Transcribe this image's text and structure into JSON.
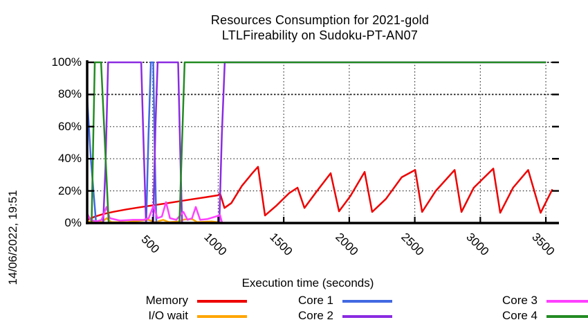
{
  "title": {
    "line1": "Resources Consumption for 2021-gold",
    "line2": "LTLFireability on Sudoku-PT-AN07"
  },
  "timestamp": "14/06/2022, 19:51",
  "axes": {
    "x_label": "Execution time (seconds)",
    "x_ticks": [
      500,
      1000,
      1500,
      2000,
      2500,
      3000,
      3500
    ],
    "x_range": [
      0,
      3600
    ],
    "y_ticks": [
      {
        "value": 0,
        "label": "0%"
      },
      {
        "value": 20,
        "label": "20%"
      },
      {
        "value": 40,
        "label": "40%"
      },
      {
        "value": 60,
        "label": "60%"
      },
      {
        "value": 80,
        "label": "80%"
      },
      {
        "value": 100,
        "label": "100%"
      }
    ],
    "y_range": [
      0,
      100
    ],
    "grid": "dotted"
  },
  "legend": [
    {
      "label": "Memory",
      "color": "#ee0000"
    },
    {
      "label": "I/O wait",
      "color": "#ffa500"
    },
    {
      "label": "Core 1",
      "color": "#4169e1"
    },
    {
      "label": "Core 2",
      "color": "#8a2be2"
    },
    {
      "label": "Core 3",
      "color": "#ff40ff"
    },
    {
      "label": "Core 4",
      "color": "#228b22"
    }
  ],
  "chart_data": {
    "type": "line",
    "title": "Resources Consumption for 2021-gold LTLFireability on Sudoku-PT-AN07",
    "xlabel": "Execution time (seconds)",
    "ylabel": "percent",
    "xlim": [
      0,
      3600
    ],
    "ylim": [
      0,
      100
    ],
    "legend_position": "bottom",
    "series": [
      {
        "name": "Memory",
        "color": "#ee0000",
        "points": [
          [
            0,
            2
          ],
          [
            60,
            4
          ],
          [
            120,
            5.5
          ],
          [
            200,
            7
          ],
          [
            300,
            8.5
          ],
          [
            400,
            9.8
          ],
          [
            500,
            11
          ],
          [
            600,
            12.2
          ],
          [
            700,
            13.5
          ],
          [
            800,
            14.8
          ],
          [
            900,
            16
          ],
          [
            1000,
            17.3
          ],
          [
            1014,
            18.5
          ],
          [
            1048,
            9.4
          ],
          [
            1100,
            12.4
          ],
          [
            1180,
            23
          ],
          [
            1260,
            31
          ],
          [
            1304,
            35
          ],
          [
            1357,
            4.7
          ],
          [
            1440,
            10.5
          ],
          [
            1540,
            18.5
          ],
          [
            1605,
            22
          ],
          [
            1658,
            9.4
          ],
          [
            1750,
            19.5
          ],
          [
            1858,
            31
          ],
          [
            1922,
            7.3
          ],
          [
            2010,
            17
          ],
          [
            2117,
            31.8
          ],
          [
            2175,
            6.9
          ],
          [
            2280,
            15
          ],
          [
            2400,
            28.5
          ],
          [
            2503,
            33
          ],
          [
            2556,
            6.9
          ],
          [
            2660,
            20
          ],
          [
            2804,
            33
          ],
          [
            2856,
            6.9
          ],
          [
            2950,
            22
          ],
          [
            3099,
            33.9
          ],
          [
            3152,
            6.4
          ],
          [
            3250,
            22
          ],
          [
            3365,
            33
          ],
          [
            3460,
            6.4
          ],
          [
            3550,
            21
          ]
        ]
      },
      {
        "name": "I/O wait",
        "color": "#ffa500",
        "points": [
          [
            0,
            1
          ],
          [
            60,
            0.5
          ],
          [
            120,
            1
          ],
          [
            148,
            3
          ],
          [
            185,
            0.5
          ],
          [
            300,
            0.5
          ],
          [
            470,
            2
          ],
          [
            515,
            0.5
          ],
          [
            580,
            2
          ],
          [
            625,
            0.5
          ],
          [
            700,
            1
          ],
          [
            740,
            2.2
          ],
          [
            800,
            2.5
          ],
          [
            840,
            0.5
          ],
          [
            950,
            1
          ],
          [
            1050,
            0
          ]
        ]
      },
      {
        "name": "Core 1",
        "color": "#4169e1",
        "points": [
          [
            0,
            78
          ],
          [
            28,
            40
          ],
          [
            68,
            0
          ],
          [
            450,
            0
          ],
          [
            468,
            55
          ],
          [
            486,
            100
          ],
          [
            504,
            100
          ],
          [
            517,
            40
          ],
          [
            528,
            0
          ],
          [
            1050,
            0
          ]
        ]
      },
      {
        "name": "Core 2",
        "color": "#8a2be2",
        "points": [
          [
            0,
            0
          ],
          [
            122,
            0
          ],
          [
            140,
            35
          ],
          [
            160,
            100
          ],
          [
            412,
            100
          ],
          [
            430,
            50
          ],
          [
            449,
            0
          ],
          [
            504,
            0
          ],
          [
            521,
            60
          ],
          [
            538,
            100
          ],
          [
            694,
            100
          ],
          [
            710,
            45
          ],
          [
            724,
            0
          ],
          [
            1008,
            0
          ],
          [
            1028,
            55
          ],
          [
            1050,
            100
          ],
          [
            3500,
            100
          ]
        ]
      },
      {
        "name": "Core 3",
        "color": "#ff40ff",
        "points": [
          [
            0,
            6
          ],
          [
            25,
            2
          ],
          [
            70,
            1
          ],
          [
            110,
            2
          ],
          [
            148,
            10
          ],
          [
            172,
            3
          ],
          [
            250,
            1.5
          ],
          [
            350,
            2
          ],
          [
            430,
            2
          ],
          [
            470,
            3
          ],
          [
            507,
            11
          ],
          [
            535,
            3
          ],
          [
            570,
            4
          ],
          [
            602,
            13
          ],
          [
            632,
            3
          ],
          [
            680,
            2
          ],
          [
            734,
            7
          ],
          [
            766,
            2
          ],
          [
            800,
            3
          ],
          [
            829,
            10
          ],
          [
            862,
            2
          ],
          [
            919,
            2.5
          ],
          [
            980,
            4
          ],
          [
            1014,
            5
          ],
          [
            1030,
            0
          ],
          [
            1050,
            0
          ]
        ]
      },
      {
        "name": "Core 4",
        "color": "#228b22",
        "points": [
          [
            0,
            0
          ],
          [
            34,
            0
          ],
          [
            58,
            100
          ],
          [
            106,
            100
          ],
          [
            164,
            0
          ],
          [
            704,
            0
          ],
          [
            744,
            100
          ],
          [
            3500,
            100
          ]
        ]
      }
    ]
  }
}
